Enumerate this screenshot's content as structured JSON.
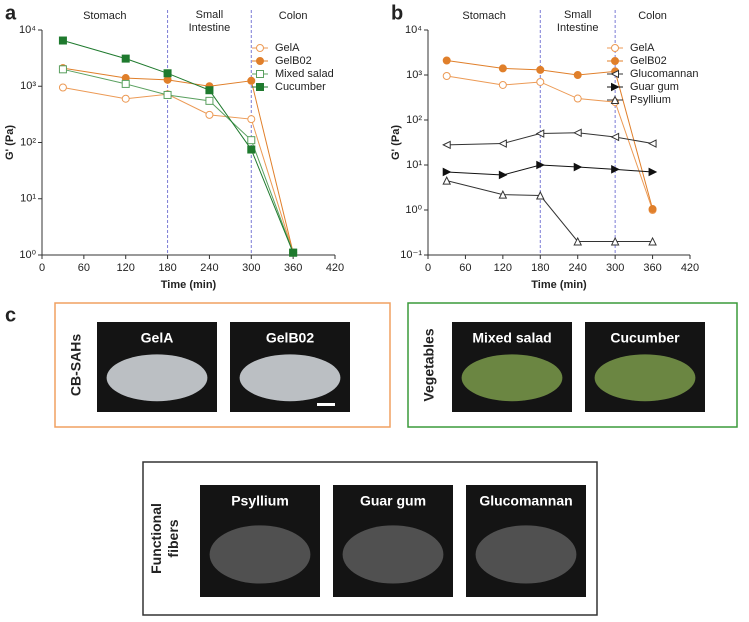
{
  "chart_data": [
    {
      "type": "line",
      "panel_label": "a",
      "xlabel": "Time (min)",
      "ylabel": "G' (Pa)",
      "log_y": true,
      "x": [
        30,
        120,
        180,
        240,
        300,
        360
      ],
      "xlim": [
        0,
        420
      ],
      "xticks": [
        0,
        60,
        120,
        180,
        240,
        300,
        360,
        420
      ],
      "ylim": [
        1,
        10000
      ],
      "yticks": [
        {
          "value": 1,
          "label": "10⁰"
        },
        {
          "value": 10,
          "label": "10¹"
        },
        {
          "value": 100,
          "label": "10²"
        },
        {
          "value": 1000,
          "label": "10³"
        },
        {
          "value": 10000,
          "label": "10⁴"
        }
      ],
      "vlines": [
        180,
        300
      ],
      "vline_color": "#7b7bd6",
      "phases": [
        "Stomach",
        "Small Intestine",
        "Colon"
      ],
      "legend": "upper right",
      "series": [
        {
          "name": "GelA",
          "color": "#ec9a55",
          "marker": "circle",
          "filled": false,
          "values": [
            950,
            600,
            720,
            310,
            260,
            1.1
          ]
        },
        {
          "name": "GelB02",
          "color": "#e07f2a",
          "marker": "circle",
          "filled": true,
          "values": [
            2100,
            1400,
            1300,
            1000,
            1250,
            1.1
          ]
        },
        {
          "name": "Mixed salad",
          "color": "#5aa05f",
          "marker": "square",
          "filled": false,
          "values": [
            2000,
            1100,
            700,
            550,
            110,
            1.1
          ]
        },
        {
          "name": "Cucumber",
          "color": "#1f7a2e",
          "marker": "square",
          "filled": true,
          "values": [
            6500,
            3100,
            1700,
            850,
            75,
            1.1
          ]
        }
      ]
    },
    {
      "type": "line",
      "panel_label": "b",
      "xlabel": "Time (min)",
      "ylabel": "G' (Pa)",
      "log_y": true,
      "x": [
        30,
        120,
        180,
        240,
        300,
        360
      ],
      "xlim": [
        0,
        420
      ],
      "xticks": [
        0,
        60,
        120,
        180,
        240,
        300,
        360,
        420
      ],
      "ylim": [
        0.1,
        10000
      ],
      "yticks": [
        {
          "value": 0.1,
          "label": "10⁻¹"
        },
        {
          "value": 1,
          "label": "10⁰"
        },
        {
          "value": 10,
          "label": "10¹"
        },
        {
          "value": 100,
          "label": "10²"
        },
        {
          "value": 1000,
          "label": "10³"
        },
        {
          "value": 10000,
          "label": "10⁴"
        }
      ],
      "vlines": [
        180,
        300
      ],
      "vline_color": "#7b7bd6",
      "phases": [
        "Stomach",
        "Small Intestine",
        "Colon"
      ],
      "legend": "upper right",
      "series": [
        {
          "name": "GelA",
          "color": "#ec9a55",
          "marker": "circle",
          "filled": false,
          "values": [
            950,
            600,
            700,
            300,
            250,
            1.0
          ]
        },
        {
          "name": "GelB02",
          "color": "#e07f2a",
          "marker": "circle",
          "filled": true,
          "values": [
            2100,
            1400,
            1300,
            1000,
            1200,
            1.05
          ]
        },
        {
          "name": "Glucomannan",
          "color": "#333333",
          "marker": "triangle-left",
          "filled": false,
          "values": [
            28,
            30,
            50,
            52,
            42,
            30
          ]
        },
        {
          "name": "Guar gum",
          "color": "#111111",
          "marker": "triangle-right",
          "filled": true,
          "values": [
            7,
            6,
            10,
            9,
            8,
            7
          ]
        },
        {
          "name": "Psyllium",
          "color": "#333333",
          "marker": "triangle-up",
          "filled": false,
          "values": [
            4.5,
            2.2,
            2.1,
            0.2,
            0.2,
            0.2
          ]
        }
      ]
    }
  ],
  "panel_c": {
    "label": "c",
    "groups": [
      {
        "title": "CB-SAHs",
        "border": "#f0a060",
        "items": [
          "GelA",
          "GelB02"
        ]
      },
      {
        "title": "Vegetables",
        "border": "#3a9a3a",
        "items": [
          "Mixed salad",
          "Cucumber"
        ]
      },
      {
        "title": "Functional fibers",
        "border": "#333333",
        "items": [
          "Psyllium",
          "Guar gum",
          "Glucomannan"
        ]
      }
    ]
  }
}
